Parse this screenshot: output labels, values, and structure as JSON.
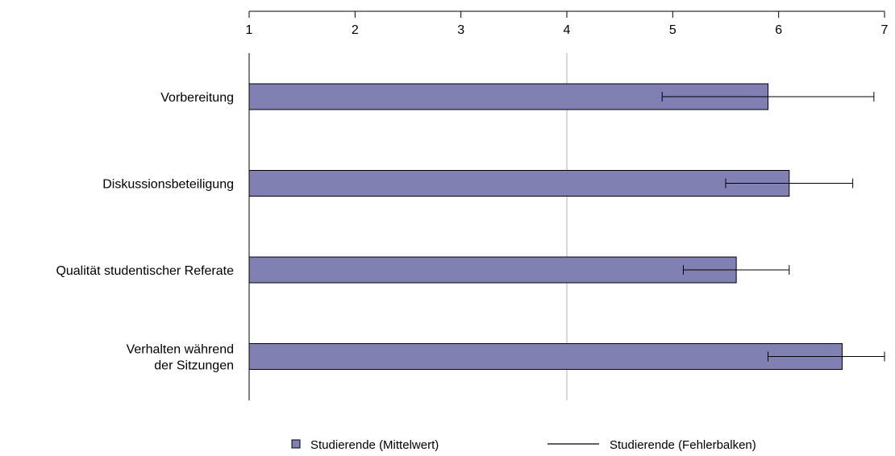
{
  "chart_data": {
    "type": "bar",
    "orientation": "horizontal",
    "title": "",
    "xlabel": "",
    "ylabel": "",
    "xlim": [
      1,
      7
    ],
    "x_ticks": [
      "1",
      "2",
      "3",
      "4",
      "5",
      "6",
      "7"
    ],
    "x_axis_position": "top",
    "reference_line": 4,
    "categories": [
      [
        "Vorbereitung"
      ],
      [
        "Diskussionsbeteiligung"
      ],
      [
        "Qualität studentischer Referate"
      ],
      [
        "Verhalten während",
        "der Sitzungen"
      ]
    ],
    "series": [
      {
        "name": "Studierende (Mittelwert)",
        "color": "#8080b3",
        "values": [
          5.9,
          6.1,
          5.6,
          6.6
        ]
      }
    ],
    "error_bars": {
      "name": "Studierende (Fehlerbalken)",
      "low": [
        4.9,
        5.5,
        5.1,
        5.9
      ],
      "high": [
        6.9,
        6.7,
        6.1,
        7.0
      ]
    },
    "grid": false,
    "legend_position": "bottom"
  }
}
